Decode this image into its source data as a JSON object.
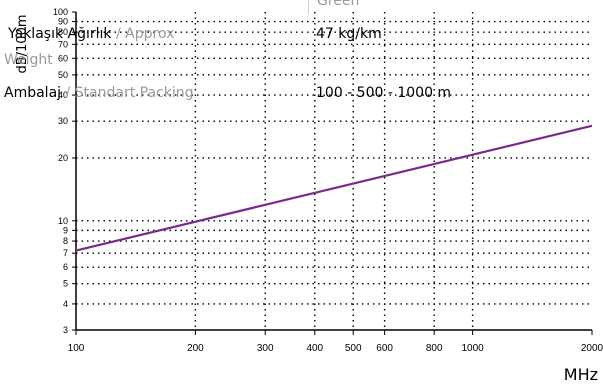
{
  "chart_data": {
    "type": "line",
    "x_scale": "log",
    "y_scale": "log",
    "xlim": [
      100,
      2000
    ],
    "ylim": [
      3,
      100
    ],
    "x_ticks": [
      100,
      200,
      300,
      400,
      500,
      600,
      800,
      1000,
      2000
    ],
    "y_ticks": [
      3,
      4,
      5,
      6,
      7,
      8,
      9,
      10,
      20,
      30,
      40,
      50,
      60,
      70,
      80,
      90,
      100
    ],
    "x_tick_labels": [
      "100",
      "200",
      "300",
      "400",
      "500",
      "600",
      "800",
      "1000",
      "2000"
    ],
    "y_tick_labels": [
      "3",
      "4",
      "5",
      "6",
      "7",
      "8",
      "9",
      "10",
      "20",
      "30",
      "40",
      "50",
      "60",
      "70",
      "80",
      "90",
      "100"
    ],
    "xlabel": "MHz",
    "ylabel": "dB/100m",
    "grid": true,
    "line_color": "#7b2a8c",
    "series": [
      {
        "x": [
          100,
          2000
        ],
        "y": [
          7.2,
          28.5
        ]
      }
    ]
  },
  "overlay": {
    "tab_fragment": "Green",
    "weight_label": "Yaklaşık Ağırlık",
    "weight_label_en": "/ Approx",
    "weight_label_en_wrap": "Weight",
    "weight_value": "47 kg/km",
    "packing_label": "Ambalaj",
    "packing_label_en": "/ Standart Packing",
    "packing_value": "100 - 500 - 1000 m"
  }
}
